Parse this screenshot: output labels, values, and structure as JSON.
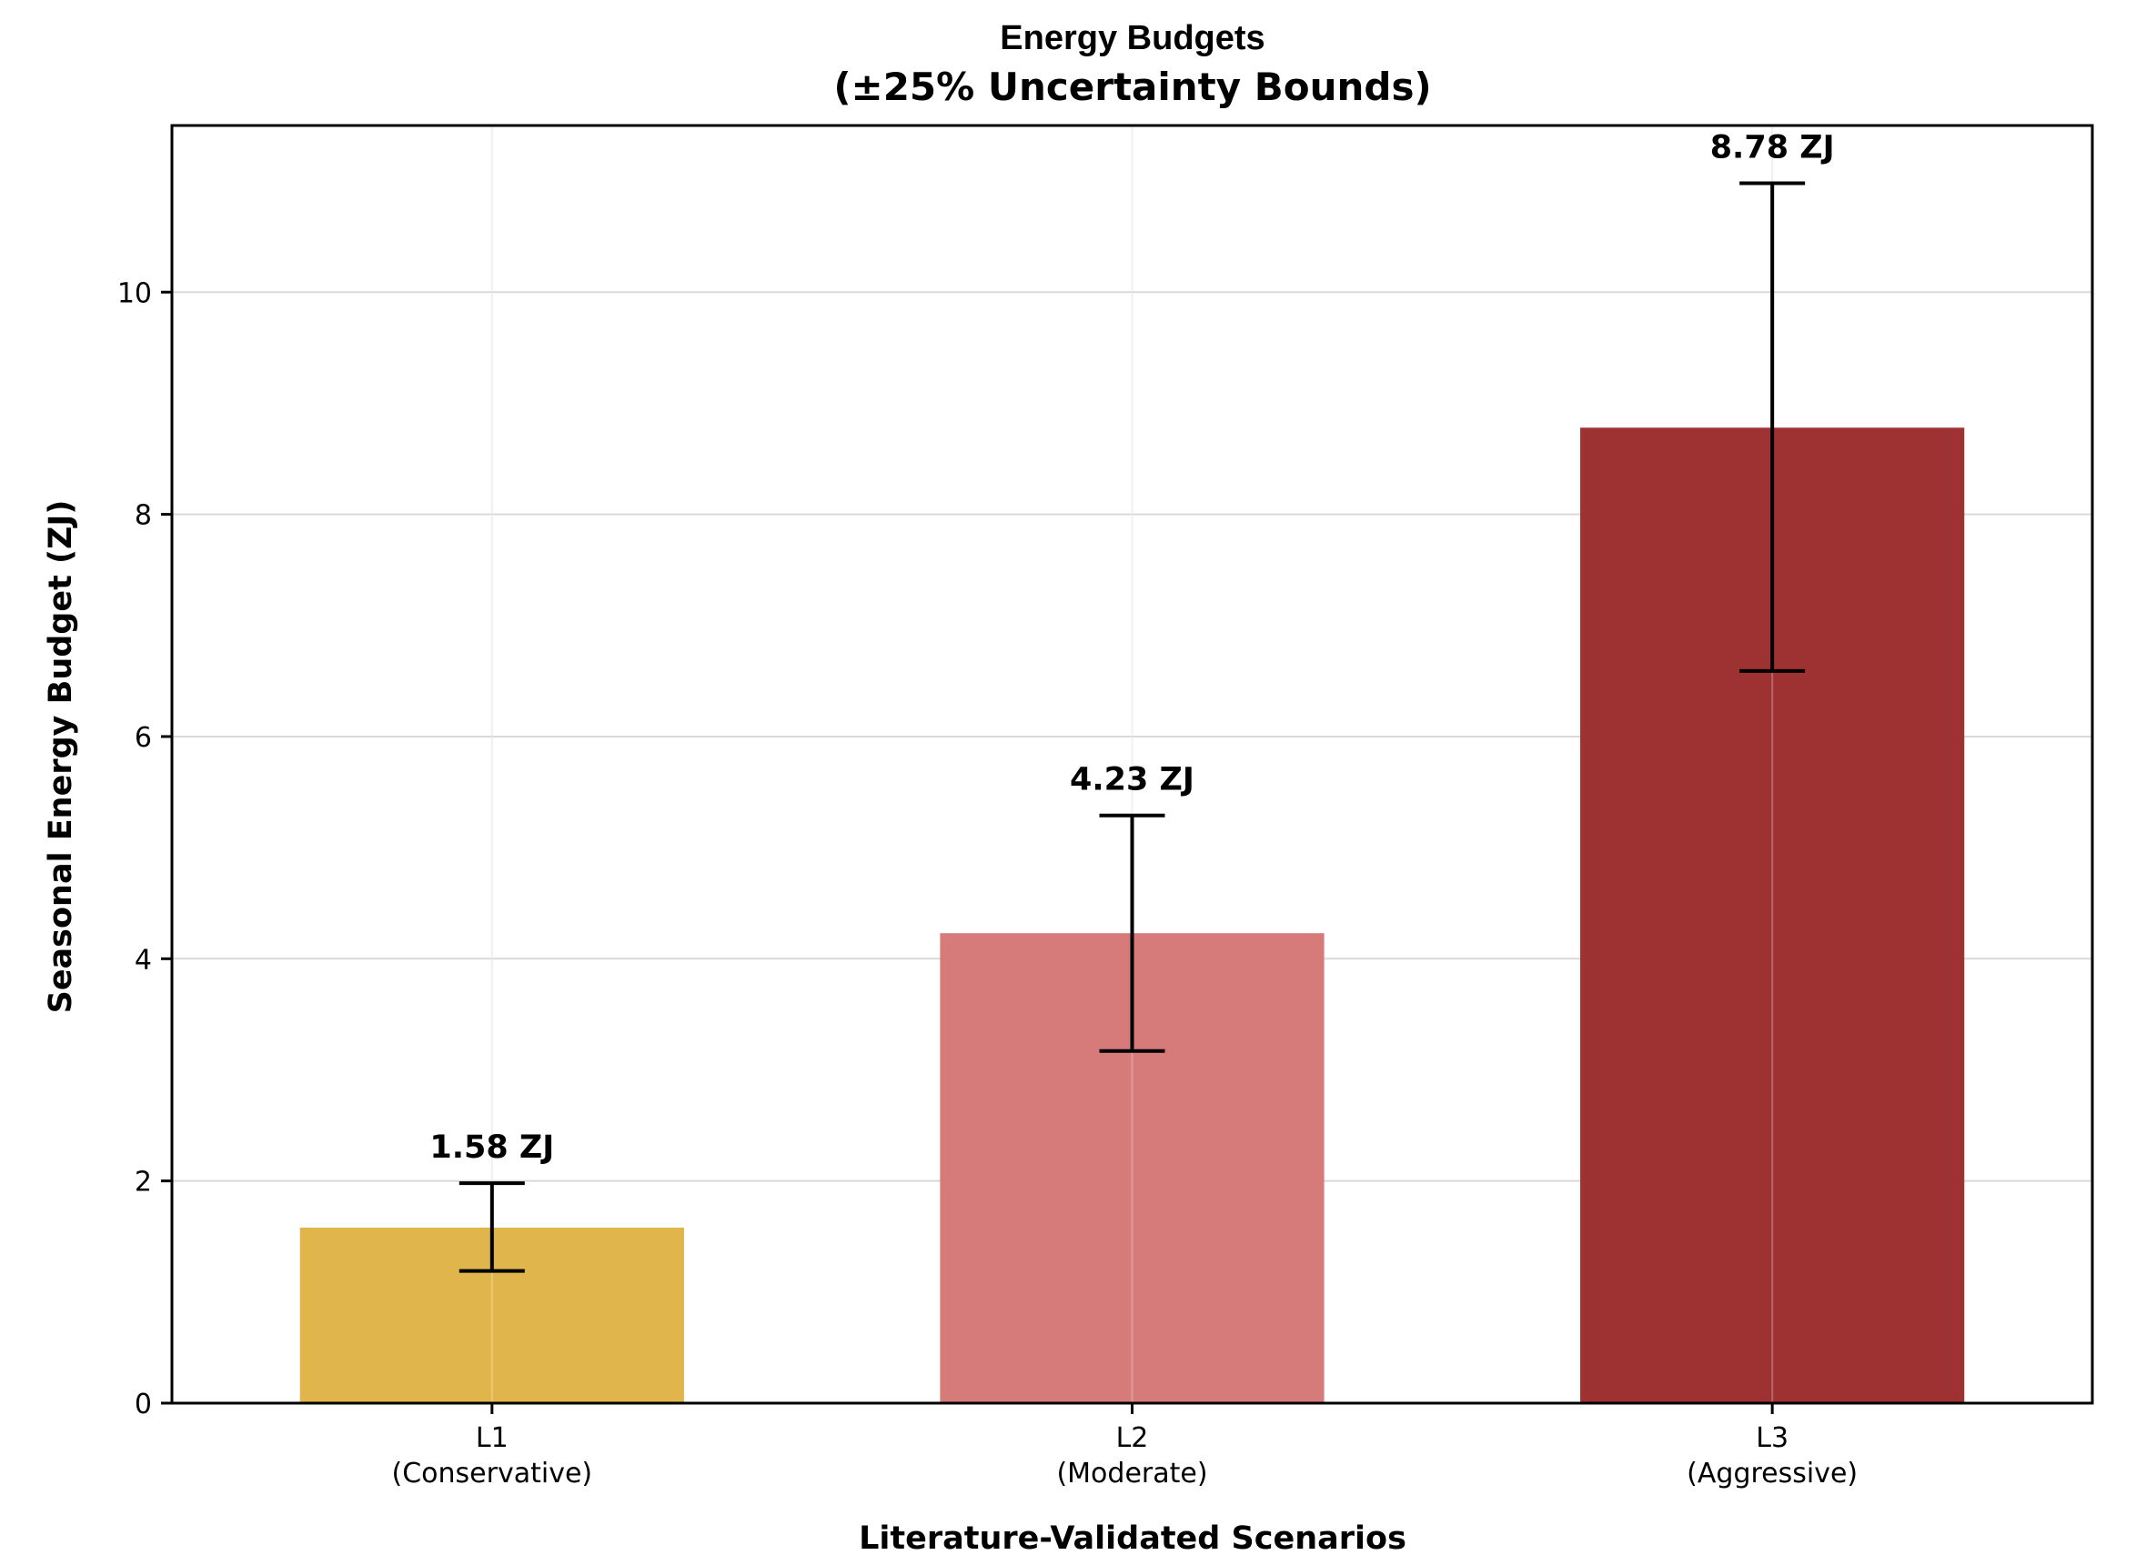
{
  "chart_data": {
    "type": "bar",
    "title": "Energy Budgets",
    "subtitle": "(±25% Uncertainty Bounds)",
    "xlabel": "Literature-Validated Scenarios",
    "ylabel": "Seasonal Energy Budget (ZJ)",
    "categories": [
      {
        "line1": "L1",
        "line2": "(Conservative)"
      },
      {
        "line1": "L2",
        "line2": "(Moderate)"
      },
      {
        "line1": "L3",
        "line2": "(Aggressive)"
      }
    ],
    "values": [
      1.58,
      4.23,
      8.78
    ],
    "error_low": [
      1.19,
      3.17,
      6.59
    ],
    "error_high": [
      1.98,
      5.29,
      10.98
    ],
    "data_labels": [
      "1.58 ZJ",
      "4.23 ZJ",
      "8.78 ZJ"
    ],
    "colors": [
      "#e0b54b",
      "#d67a7a",
      "#9e3232"
    ],
    "ylim": [
      0,
      11.5
    ],
    "yticks": [
      0,
      2,
      4,
      6,
      8,
      10
    ],
    "grid": true
  }
}
